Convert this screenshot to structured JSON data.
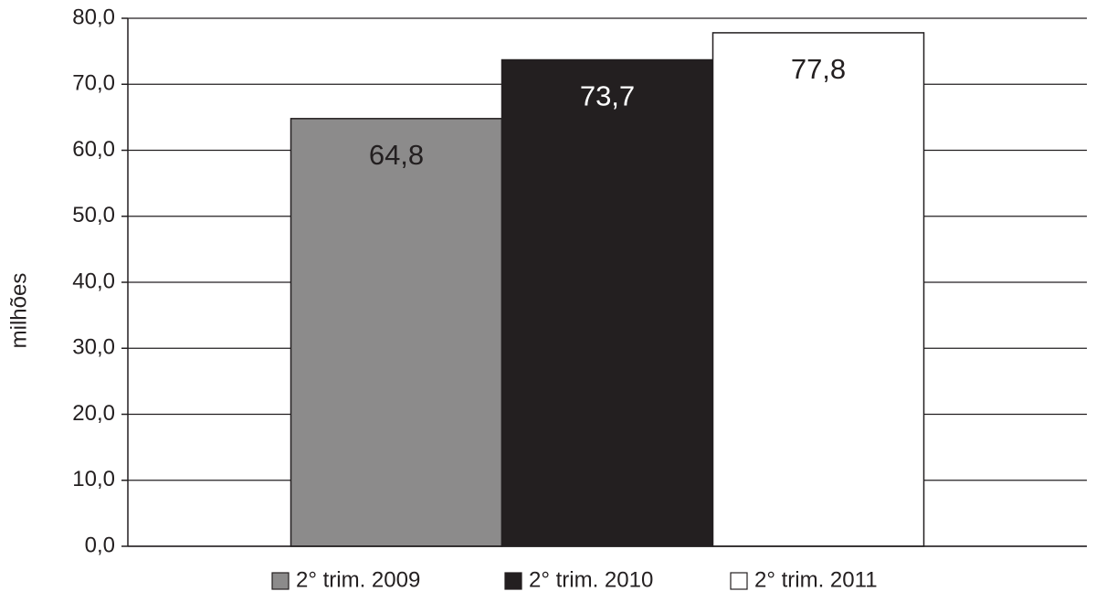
{
  "chart_data": {
    "type": "bar",
    "y_label": "milhões",
    "categories": [
      null
    ],
    "series": [
      {
        "name": "2° trim. 2009",
        "color": "#8c8b8b",
        "values": [
          64.8
        ],
        "value_labels": [
          "64,8"
        ]
      },
      {
        "name": "2° trim. 2010",
        "color": "#231f20",
        "values": [
          73.7
        ],
        "value_labels": [
          "73,7"
        ]
      },
      {
        "name": "2° trim. 2011",
        "color": "#ffffff",
        "values": [
          77.8
        ],
        "value_labels": [
          "77,8"
        ]
      }
    ],
    "ylim": [
      0,
      80
    ],
    "yticks": [
      {
        "value": 0,
        "label": "0,0"
      },
      {
        "value": 10,
        "label": "10,0"
      },
      {
        "value": 20,
        "label": "20,0"
      },
      {
        "value": 30,
        "label": "30,0"
      },
      {
        "value": 40,
        "label": "40,0"
      },
      {
        "value": 50,
        "label": "50,0"
      },
      {
        "value": 60,
        "label": "60,0"
      },
      {
        "value": 70,
        "label": "70,0"
      },
      {
        "value": 80,
        "label": "80,0"
      }
    ],
    "grid": true,
    "legend": "bottom"
  }
}
